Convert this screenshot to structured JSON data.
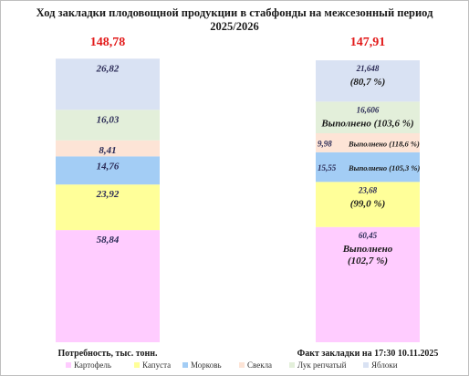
{
  "chart_data": {
    "type": "bar",
    "stacked": true,
    "title_lines": [
      "Ход закладки плодовощной продукции в стабфонды на межсезонный период",
      "2025/2026"
    ],
    "categories": [
      "Потребность, тыс. тонн.",
      "Факт закладки на 17:30 10.11.2025"
    ],
    "totals": [
      "148,78",
      "147,91"
    ],
    "series": [
      {
        "name": "Картофель",
        "color": "#ffccff",
        "values": [
          58.84,
          60.45
        ],
        "labels": [
          "58,84",
          "60,45"
        ],
        "notes": [
          "",
          "Выполнено|(102,7 %)"
        ]
      },
      {
        "name": "Капуста",
        "color": "#ffff99",
        "values": [
          23.92,
          23.68
        ],
        "labels": [
          "23,92",
          "23,68"
        ],
        "notes": [
          "",
          "(99,0 %)"
        ]
      },
      {
        "name": "Морковь",
        "color": "#a3cdf5",
        "values": [
          14.76,
          15.55
        ],
        "labels": [
          "14,76",
          "15,55"
        ],
        "notes": [
          "",
          "Выполнено (105,3 %)"
        ]
      },
      {
        "name": "Свекла",
        "color": "#fde4d6",
        "values": [
          8.41,
          9.98
        ],
        "labels": [
          "8,41",
          "9,98"
        ],
        "notes": [
          "",
          "Выполнено (118,6 %)"
        ]
      },
      {
        "name": "Лук репчатый",
        "color": "#e3efda",
        "values": [
          16.03,
          16.606
        ],
        "labels": [
          "16,03",
          "16,606"
        ],
        "notes": [
          "",
          "Выполнено (103,6 %)"
        ]
      },
      {
        "name": "Яблоки",
        "color": "#d9e2f3",
        "values": [
          26.82,
          21.648
        ],
        "labels": [
          "26,82",
          "21,648"
        ],
        "notes": [
          "",
          "(80,7 %)"
        ]
      }
    ],
    "legend_position": "bottom",
    "grid": false
  }
}
